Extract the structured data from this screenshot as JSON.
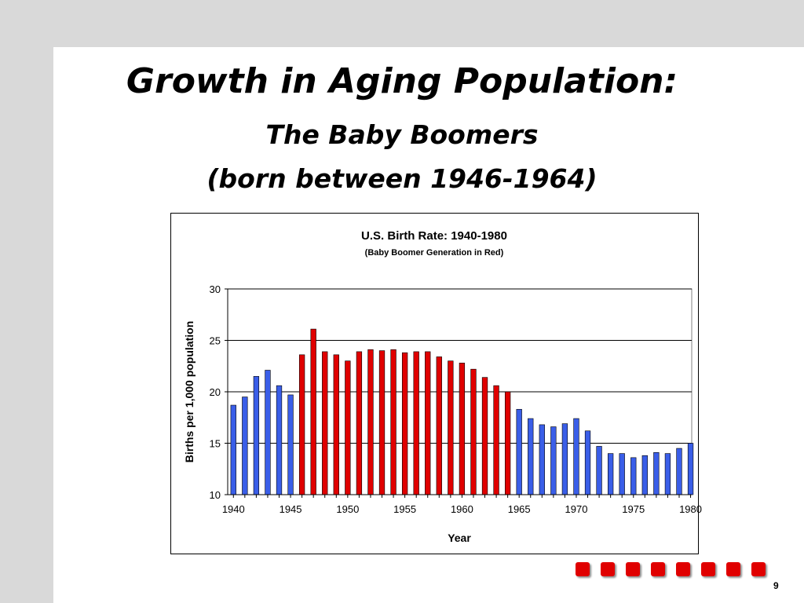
{
  "slide": {
    "title": "Growth in Aging Population:",
    "subtitle": "The Baby Boomers",
    "subtitle2": "(born between 1946-1964)",
    "page_number": "9"
  },
  "decoration": {
    "square_count": 8,
    "square_color": "#e00000"
  },
  "chart_data": {
    "type": "bar",
    "title": "U.S. Birth Rate: 1940-1980",
    "subtitle": "(Baby Boomer Generation in Red)",
    "xlabel": "Year",
    "ylabel": "Births per 1,000 population",
    "ylim": [
      10,
      30
    ],
    "yticks": [
      10,
      15,
      20,
      25,
      30
    ],
    "xticks": [
      "1940",
      "1945",
      "1950",
      "1955",
      "1960",
      "1965",
      "1970",
      "1975",
      "1980"
    ],
    "grid": true,
    "colors": {
      "boomer": "#e00000",
      "other": "#3a5ee8"
    },
    "boomer_range": [
      1946,
      1964
    ],
    "years": [
      1940,
      1941,
      1942,
      1943,
      1944,
      1945,
      1946,
      1947,
      1948,
      1949,
      1950,
      1951,
      1952,
      1953,
      1954,
      1955,
      1956,
      1957,
      1958,
      1959,
      1960,
      1961,
      1962,
      1963,
      1964,
      1965,
      1966,
      1967,
      1968,
      1969,
      1970,
      1971,
      1972,
      1973,
      1974,
      1975,
      1976,
      1977,
      1978,
      1979,
      1980
    ],
    "values": [
      18.7,
      19.5,
      21.5,
      22.1,
      20.6,
      19.7,
      23.6,
      26.1,
      23.9,
      23.6,
      23.0,
      23.9,
      24.1,
      24.0,
      24.1,
      23.8,
      23.9,
      23.9,
      23.4,
      23.0,
      22.8,
      22.2,
      21.4,
      20.6,
      20.0,
      18.3,
      17.4,
      16.8,
      16.6,
      16.9,
      17.4,
      16.2,
      14.7,
      14.0,
      14.0,
      13.6,
      13.8,
      14.1,
      14.0,
      14.5,
      15.0
    ]
  }
}
